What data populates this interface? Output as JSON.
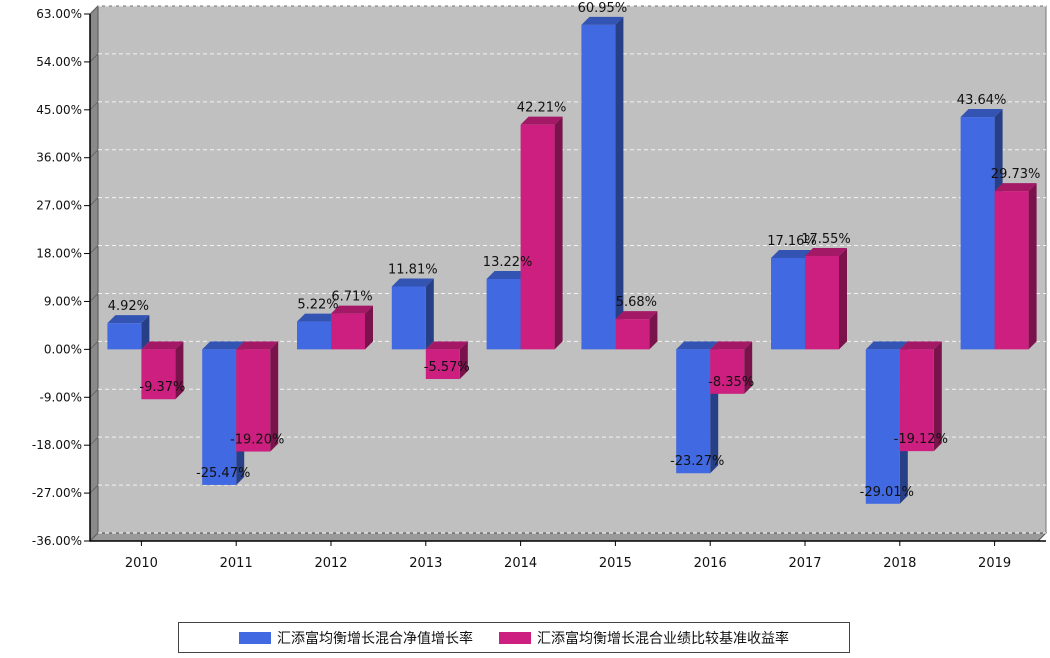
{
  "chart_data": {
    "type": "bar",
    "categories": [
      "2010",
      "2011",
      "2012",
      "2013",
      "2014",
      "2015",
      "2016",
      "2017",
      "2018",
      "2019"
    ],
    "series": [
      {
        "name": "汇添富均衡增长混合净值增长率",
        "color": "#4169e1",
        "values": [
          4.92,
          -25.47,
          5.22,
          11.81,
          13.22,
          60.95,
          -23.27,
          17.16,
          -29.01,
          43.64
        ],
        "labels": [
          "4.92%",
          "-25.47%",
          "5.22%",
          "11.81%",
          "13.22%",
          "60.95%",
          "-23.27%",
          "17.16%",
          "-29.01%",
          "43.64%"
        ]
      },
      {
        "name": "汇添富均衡增长混合业绩比较基准收益率",
        "color": "#cc1f7f",
        "values": [
          -9.37,
          -19.2,
          6.71,
          -5.57,
          42.21,
          5.68,
          -8.35,
          17.55,
          -19.12,
          29.73
        ],
        "labels": [
          "-9.37%",
          "-19.20%",
          "6.71%",
          "-5.57%",
          "42.21%",
          "5.68%",
          "-8.35%",
          "17.55%",
          "-19.12%",
          "29.73%"
        ]
      }
    ],
    "y_ticks": [
      "63.00%",
      "54.00%",
      "45.00%",
      "36.00%",
      "27.00%",
      "18.00%",
      "9.00%",
      "0.00%",
      "-9.00%",
      "-18.00%",
      "-27.00%",
      "-36.00%"
    ],
    "ylim": [
      -36,
      63
    ],
    "grid": true,
    "legend_position": "bottom",
    "plot_background": "#c0c0c0"
  }
}
